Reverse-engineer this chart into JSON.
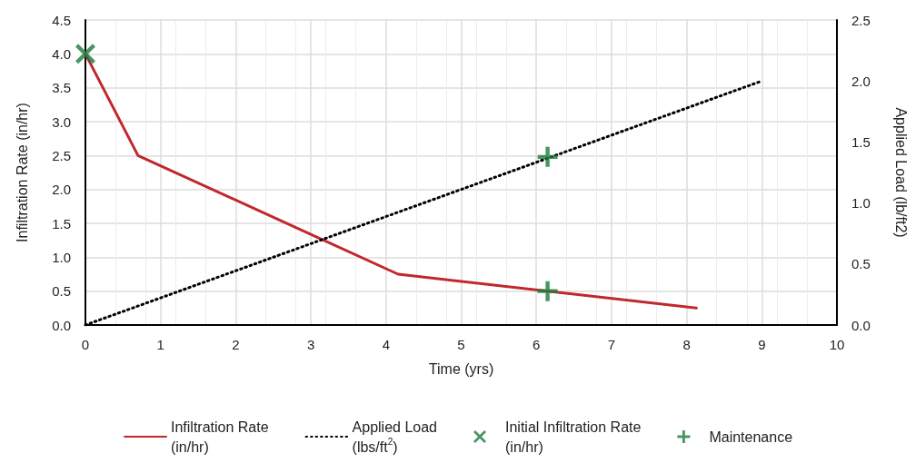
{
  "chart_data": {
    "type": "line",
    "xlabel": "Time (yrs)",
    "ylabel": "Infiltration Rate (in/hr)",
    "y2label": "Applied Load (lb/ft2)",
    "xlim": [
      0,
      10
    ],
    "xticks": [
      0,
      1,
      2,
      3,
      4,
      5,
      6,
      7,
      8,
      9,
      10
    ],
    "ylim": [
      0,
      4.5
    ],
    "yticks": [
      {
        "value": 0,
        "label": "0.0"
      },
      0.5,
      {
        "value": 1,
        "label": "1.0"
      },
      1.5,
      {
        "value": 2,
        "label": "2.0"
      },
      2.5,
      {
        "value": 3,
        "label": "3.0"
      },
      3.5,
      {
        "value": 4,
        "label": "4.0"
      },
      4.5
    ],
    "y2lim": [
      0,
      2.5
    ],
    "y2ticks": [
      {
        "value": 0,
        "label": "0.0"
      },
      0.5,
      {
        "value": 1,
        "label": "1.0"
      },
      1.5,
      {
        "value": 2,
        "label": "2.0"
      },
      2.5
    ],
    "grid": true,
    "legend": "bottom",
    "series": [
      {
        "name": "Infiltration Rate (in/hr)",
        "color": "#c0282d",
        "line_style": "solid",
        "marker": "none",
        "x": [
          0,
          0.7,
          4.16,
          8.13
        ],
        "values": [
          4.0,
          2.5,
          0.75,
          0.25
        ]
      },
      {
        "name": "Applied Load (lbs/ft$^{2}$)",
        "axis": "y2",
        "color": "#000000",
        "line_style": "dotted",
        "marker": "none",
        "x": [
          0,
          9
        ],
        "values": [
          0,
          2.0
        ]
      },
      {
        "name": "Initial Infiltration Rate (in/hr)",
        "type": "scatter",
        "color": "#1a7a3c",
        "marker": "x",
        "x": [
          0
        ],
        "values": [
          4.0
        ]
      },
      {
        "name": "Maintenance",
        "type": "scatter",
        "color": "#1a7a3c",
        "marker": "cross",
        "x": [
          6.15,
          6.15
        ],
        "values": [
          2.48,
          0.5
        ]
      }
    ]
  }
}
